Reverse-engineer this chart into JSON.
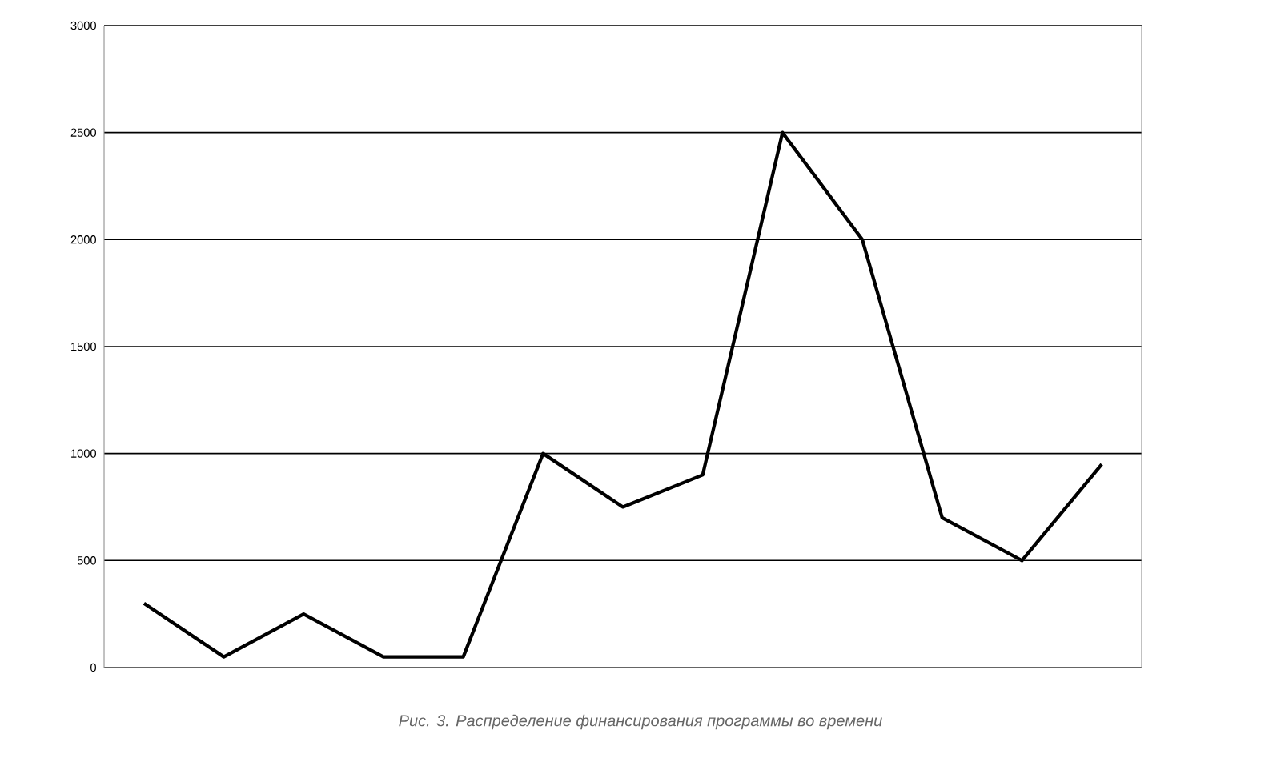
{
  "chart_data": {
    "type": "line",
    "categories": [
      null,
      null,
      null,
      null,
      null,
      null,
      null,
      null,
      null,
      null,
      null,
      null,
      null
    ],
    "values": [
      300,
      50,
      250,
      50,
      50,
      1000,
      750,
      900,
      2500,
      2000,
      700,
      500,
      950
    ],
    "color": "#000000",
    "line_style": "solid",
    "ylim": [
      0,
      3000
    ],
    "yticks": [
      0,
      500,
      1000,
      1500,
      2000,
      2500,
      3000
    ],
    "grid": "y",
    "tick_labels": "y",
    "annotations": [
      "Рис. 3. Распределение финансирования программы во времени"
    ]
  }
}
